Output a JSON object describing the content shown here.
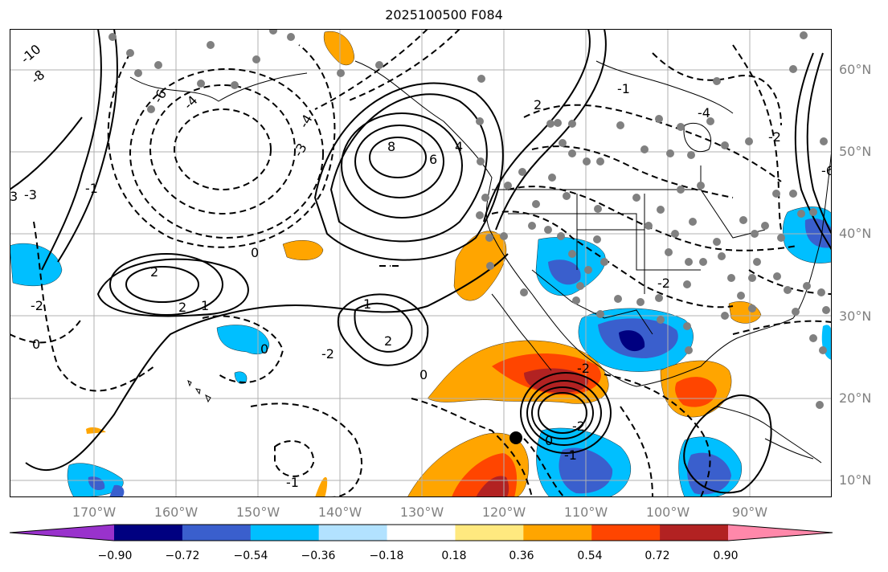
{
  "title": "2025100500 F084",
  "lat_labels": [
    "60°N",
    "50°N",
    "40°N",
    "30°N",
    "20°N",
    "10°N"
  ],
  "lon_labels": [
    "170°W",
    "160°W",
    "150°W",
    "140°W",
    "130°W",
    "120°W",
    "110°W",
    "100°W",
    "90°W"
  ],
  "colorbar": {
    "ticks": [
      "−0.90",
      "−0.72",
      "−0.54",
      "−0.36",
      "−0.18",
      "0.18",
      "0.36",
      "0.54",
      "0.72",
      "0.90"
    ],
    "colors": [
      "#9932cc",
      "#000080",
      "#3a5fcd",
      "#00bfff",
      "#b2e2ff",
      "#ffffff",
      "#ffe97f",
      "#ffa500",
      "#ff4500",
      "#b22222",
      "#ff88aa"
    ]
  },
  "contour_labels": [
    "-10",
    "-8",
    "-6",
    "-6",
    "-4",
    "-4",
    "-3",
    "-3",
    "-2",
    "-2",
    "-2",
    "-1",
    "-1",
    "-1",
    "0",
    "0",
    "0",
    "0",
    "1",
    "1",
    "2",
    "2",
    "2",
    "2",
    "3",
    "4",
    "6",
    "8",
    "-4",
    "-2",
    "-1",
    "-2",
    "0",
    "-2"
  ],
  "marker": "storm-center"
}
